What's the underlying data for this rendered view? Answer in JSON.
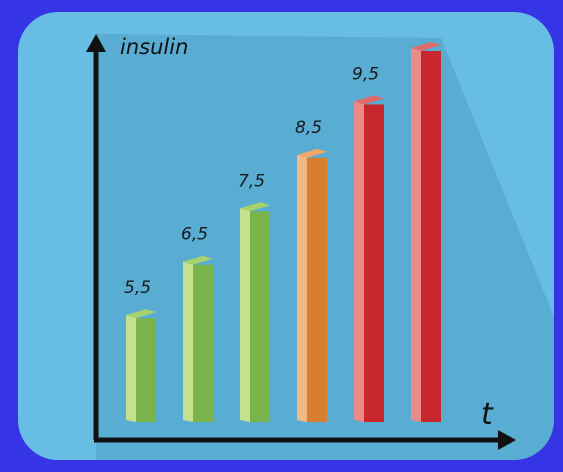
{
  "colors": {
    "background": "#3535e6",
    "panel": "#67bde3",
    "shadow": "#4f9fc4",
    "axis": "#111111",
    "label_text": "#1a1a1a"
  },
  "chart_data": {
    "type": "bar",
    "title": "",
    "xlabel": "t",
    "ylabel": "insulin",
    "categories": [
      "",
      "",
      "",
      "",
      "",
      ""
    ],
    "values": [
      5.5,
      6.5,
      7.5,
      8.5,
      9.5,
      10.5
    ],
    "data_labels": [
      "5,5",
      "6,5",
      "7,5",
      "8,5",
      "9,5",
      ""
    ],
    "bar_colors": [
      "#7ab34a",
      "#7ab34a",
      "#7ab34a",
      "#d97d2f",
      "#c8282d",
      "#c8282d"
    ],
    "bar_highlight_colors": [
      "#a7d26b",
      "#a7d26b",
      "#a7d26b",
      "#f0a86a",
      "#e06a6a",
      "#e06a6a"
    ],
    "bar_side_colors": [
      "#c5e08f",
      "#c5e08f",
      "#c5e08f",
      "#f3b985",
      "#ec8a8a",
      "#ec8a8a"
    ],
    "ylim": [
      3.5,
      10.5
    ],
    "grid": false,
    "legend": "none",
    "style": "3d-isometric-flat"
  }
}
